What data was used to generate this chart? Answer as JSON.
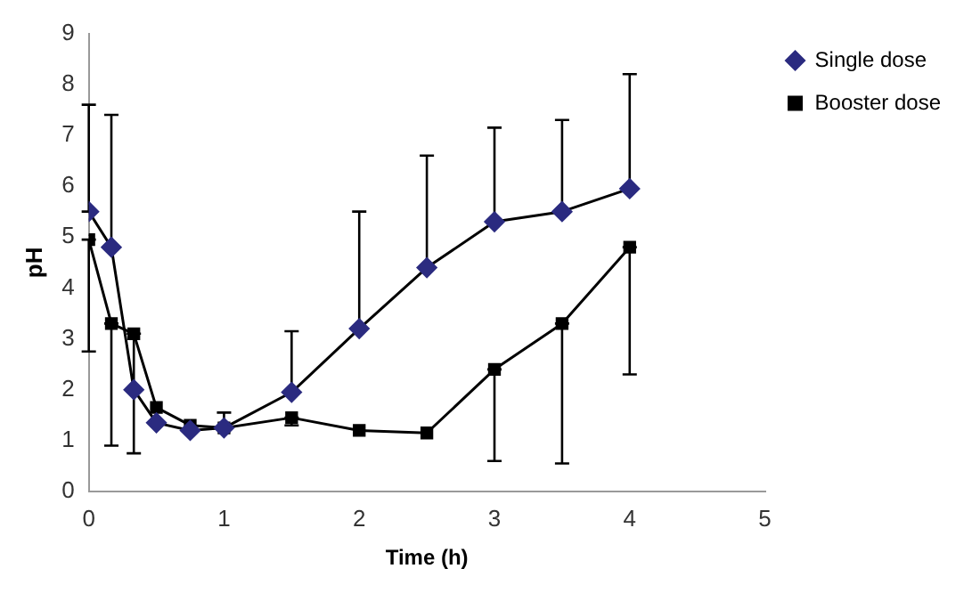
{
  "chart_data": {
    "type": "line",
    "xlabel": "Time (h)",
    "ylabel": "pH",
    "xlim": [
      0,
      5
    ],
    "xticks": [
      0,
      1,
      2,
      3,
      4,
      5
    ],
    "ylim": [
      0,
      9
    ],
    "yticks": [
      0,
      1,
      2,
      3,
      4,
      5,
      6,
      7,
      8,
      9
    ],
    "grid": false,
    "legend": "top right",
    "line_style": "solid",
    "series": [
      {
        "name": "Single dose",
        "color": "#2b2b80",
        "marker": "diamond",
        "x": [
          0,
          0.167,
          0.333,
          0.5,
          0.75,
          1,
          1.5,
          2,
          2.5,
          3,
          3.5,
          4
        ],
        "values": [
          5.5,
          4.8,
          2.0,
          1.35,
          1.2,
          1.25,
          1.95,
          3.2,
          4.4,
          5.3,
          5.5,
          5.95
        ],
        "errors": [
          [
            5.5,
            7.6
          ],
          [
            4.8,
            7.4
          ],
          null,
          null,
          null,
          [
            1.25,
            1.55
          ],
          [
            1.95,
            3.15
          ],
          [
            3.2,
            5.5
          ],
          [
            4.4,
            6.6
          ],
          [
            5.3,
            7.15
          ],
          [
            5.5,
            7.3
          ],
          [
            5.95,
            8.2
          ]
        ]
      },
      {
        "name": "Booster dose",
        "color": "#000000",
        "marker": "square",
        "x": [
          0,
          0.167,
          0.333,
          0.5,
          0.75,
          1,
          1.5,
          2,
          2.5,
          3,
          3.5,
          4
        ],
        "values": [
          4.95,
          3.3,
          3.1,
          1.65,
          1.3,
          1.25,
          1.45,
          1.2,
          1.15,
          2.4,
          3.3,
          4.8
        ],
        "errors": [
          [
            2.75,
            4.95
          ],
          [
            0.9,
            3.3
          ],
          [
            0.75,
            3.1
          ],
          null,
          null,
          null,
          [
            1.3,
            1.45
          ],
          null,
          null,
          [
            0.6,
            2.4
          ],
          [
            0.55,
            3.3
          ],
          [
            2.3,
            4.8
          ]
        ]
      }
    ]
  }
}
